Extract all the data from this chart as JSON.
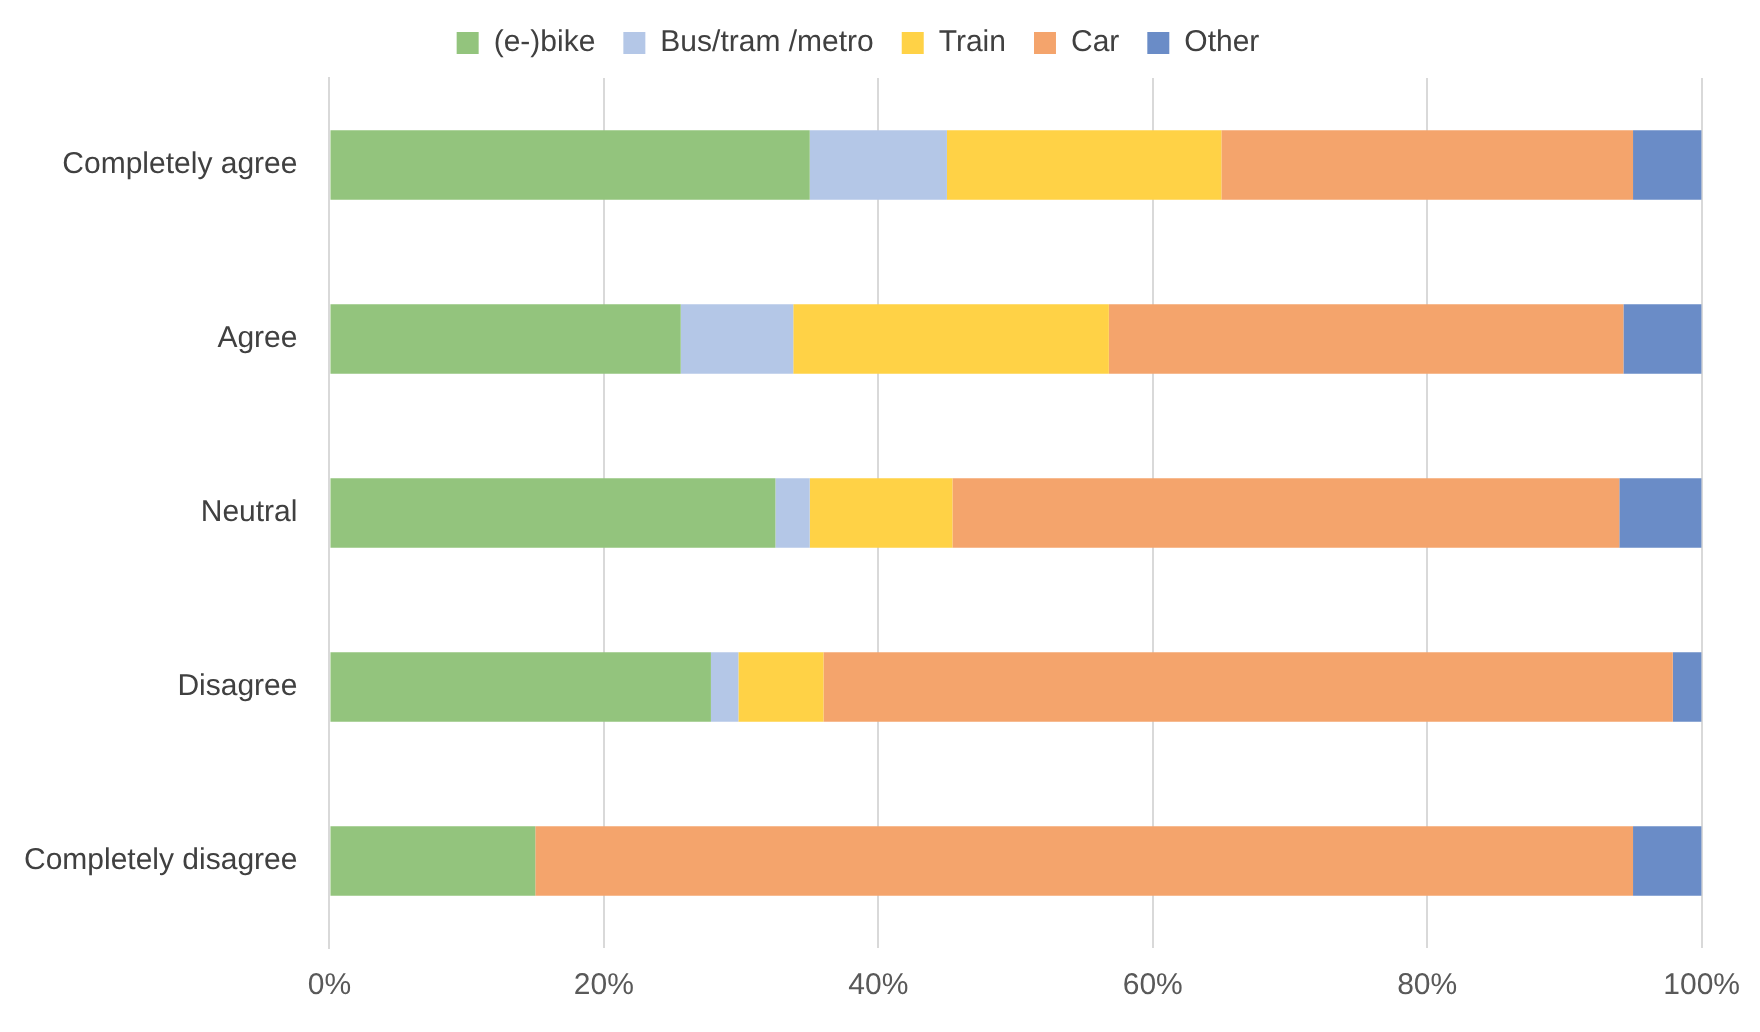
{
  "chart_data": {
    "type": "bar",
    "orientation": "horizontal",
    "stacked": true,
    "categories": [
      "Completely agree",
      "Agree",
      "Neutral",
      "Disagree",
      "Completely disagree"
    ],
    "series": [
      {
        "name": "(e-)bike",
        "color": "#93c47d",
        "values": [
          35,
          25.6,
          32.5,
          27.8,
          15
        ]
      },
      {
        "name": "Bus/tram /metro",
        "color": "#b4c7e7",
        "values": [
          10,
          8.2,
          2.5,
          2,
          0
        ]
      },
      {
        "name": "Train",
        "color": "#ffd246",
        "values": [
          20,
          23,
          10.4,
          6.2,
          0
        ]
      },
      {
        "name": "Car",
        "color": "#f4a46c",
        "values": [
          30,
          37.5,
          48.6,
          61.9,
          80
        ]
      },
      {
        "name": "Other",
        "color": "#6a8cc7",
        "values": [
          5,
          5.7,
          6,
          2.1,
          5
        ]
      }
    ],
    "xlim": [
      0,
      100
    ],
    "xticks": [
      {
        "value": 0,
        "label": "0%"
      },
      {
        "value": 20,
        "label": "20%"
      },
      {
        "value": 40,
        "label": "40%"
      },
      {
        "value": 60,
        "label": "60%"
      },
      {
        "value": 80,
        "label": "80%"
      },
      {
        "value": 100,
        "label": "100%"
      }
    ],
    "grid": "x",
    "legend": "top"
  }
}
